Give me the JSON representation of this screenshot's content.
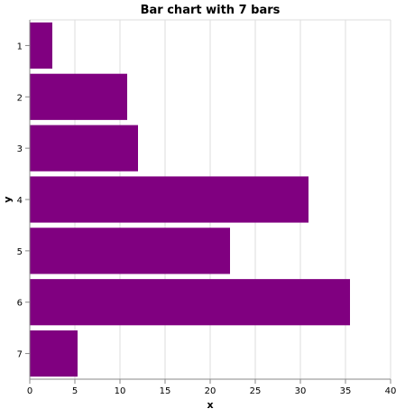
{
  "chart_data": {
    "type": "bar",
    "orientation": "horizontal",
    "title": "Bar chart with 7 bars",
    "xlabel": "x",
    "ylabel": "y",
    "categories": [
      "1",
      "2",
      "3",
      "4",
      "5",
      "6",
      "7"
    ],
    "values": [
      2.5,
      10.8,
      12.0,
      30.9,
      22.2,
      35.5,
      5.3
    ],
    "xlim": [
      0,
      40
    ],
    "xticks": [
      "0",
      "5",
      "10",
      "15",
      "20",
      "25",
      "30",
      "35",
      "40"
    ],
    "grid": true,
    "legend": "none",
    "bar_color": "#800080",
    "grid_color": "#dddddd",
    "axis_color": "#888888"
  }
}
